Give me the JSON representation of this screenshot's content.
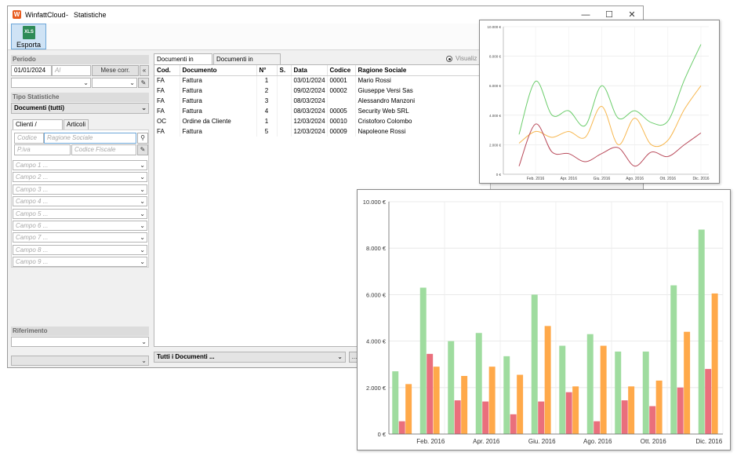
{
  "window": {
    "app_name": "WinfattCloud",
    "separator": "-",
    "title": "Statistiche",
    "minimize": "—",
    "maximize": "☐",
    "close": "✕"
  },
  "ribbon": {
    "export_label": "Esporta",
    "export_icon_text": "XLS"
  },
  "left": {
    "periodo_label": "Periodo",
    "date_from": "01/01/2024",
    "date_to_placeholder": "Al",
    "mese_corr_label": "Mese corr.",
    "prev_label": "«",
    "tipo_label": "Tipo Statistiche",
    "tipo_value": "Documenti (tutti)",
    "tab_clienti": "Clienti / Fornitori",
    "tab_articoli": "Articoli",
    "codice_placeholder": "Codice",
    "ragione_placeholder": "Ragione Sociale",
    "piva_placeholder": "P.iva",
    "cf_placeholder": "Codice Fiscale",
    "campi": [
      "Campo 1 ...",
      "Campo 2 ...",
      "Campo 3 ...",
      "Campo 4 ...",
      "Campo 5 ...",
      "Campo 6 ...",
      "Campo 7 ...",
      "Campo 8 ...",
      "Campo 9 ..."
    ],
    "riferimento_label": "Riferimento"
  },
  "center": {
    "tab_uscita": "Documenti in uscita",
    "tab_ingresso": "Documenti in ingresso",
    "visual_label": "Visualiz",
    "columns": [
      "Cod.",
      "Documento",
      "N°",
      "S.",
      "Data",
      "Codice",
      "Ragione Sociale"
    ],
    "rows": [
      [
        "FA",
        "Fattura",
        "1",
        "",
        "03/01/2024",
        "00001",
        "Mario Rossi"
      ],
      [
        "FA",
        "Fattura",
        "2",
        "",
        "09/02/2024",
        "00002",
        "Giuseppe Versi Sas"
      ],
      [
        "FA",
        "Fattura",
        "3",
        "",
        "08/03/2024",
        "",
        "Alessandro Manzoni"
      ],
      [
        "FA",
        "Fattura",
        "4",
        "",
        "08/03/2024",
        "00005",
        "Security Web SRL"
      ],
      [
        "OC",
        "Ordine da Cliente",
        "1",
        "",
        "12/03/2024",
        "00010",
        "Cristoforo Colombo"
      ],
      [
        "FA",
        "Fattura",
        "5",
        "",
        "12/03/2024",
        "00009",
        "Napoleone Rossi"
      ]
    ],
    "tutti_label": "Tutti i Documenti ...",
    "more_label": "..."
  },
  "chart_data": [
    {
      "type": "line",
      "title": "",
      "xlabel": "",
      "ylabel": "",
      "x_tick_labels": [
        "Feb. 2016",
        "Apr. 2016",
        "Giu. 2016",
        "Ago. 2016",
        "Ott. 2016",
        "Dic. 2016"
      ],
      "y_tick_labels": [
        "0 €",
        "2.000 €",
        "4.000 €",
        "6.000 €",
        "8.000 €",
        "10.000 €"
      ],
      "ylim": [
        0,
        10000
      ],
      "grid": true,
      "x": [
        1,
        2,
        3,
        4,
        5,
        6,
        7,
        8,
        9,
        10,
        11,
        12
      ],
      "series": [
        {
          "color": "#6ccd6c",
          "values": [
            2700,
            6300,
            4000,
            4300,
            3300,
            6000,
            3800,
            4300,
            3500,
            3600,
            6400,
            8800
          ]
        },
        {
          "color": "#f7b74f",
          "values": [
            2100,
            2900,
            2500,
            2900,
            2500,
            4600,
            2000,
            3800,
            2000,
            2300,
            4400,
            6000
          ]
        },
        {
          "color": "#b94a5a",
          "values": [
            550,
            3400,
            1500,
            1400,
            850,
            1400,
            1800,
            550,
            1500,
            1200,
            2000,
            2800
          ]
        }
      ]
    },
    {
      "type": "bar",
      "title": "",
      "xlabel": "",
      "ylabel": "",
      "categories": [
        "1",
        "2",
        "3",
        "4",
        "5",
        "6",
        "7",
        "8",
        "9",
        "10",
        "11",
        "12"
      ],
      "x_tick_labels": [
        "Feb. 2016",
        "Apr. 2016",
        "Giu. 2016",
        "Ago. 2016",
        "Ott. 2016",
        "Dic. 2016"
      ],
      "y_tick_labels": [
        "0 €",
        "2.000 €",
        "4.000 €",
        "6.000 €",
        "8.000 €",
        "10.000 €"
      ],
      "ylim": [
        0,
        10000
      ],
      "grid": true,
      "series": [
        {
          "color": "#9fdc9f",
          "values": [
            2700,
            6300,
            4000,
            4350,
            3350,
            6000,
            3800,
            4300,
            3550,
            3550,
            6400,
            8800
          ]
        },
        {
          "color": "#ea6f7c",
          "values": [
            550,
            3450,
            1450,
            1400,
            850,
            1400,
            1800,
            550,
            1450,
            1200,
            2000,
            2800
          ]
        },
        {
          "color": "#ffa94a",
          "values": [
            2150,
            2900,
            2500,
            2900,
            2550,
            4650,
            2050,
            3800,
            2050,
            2300,
            4400,
            6050
          ]
        }
      ]
    }
  ]
}
